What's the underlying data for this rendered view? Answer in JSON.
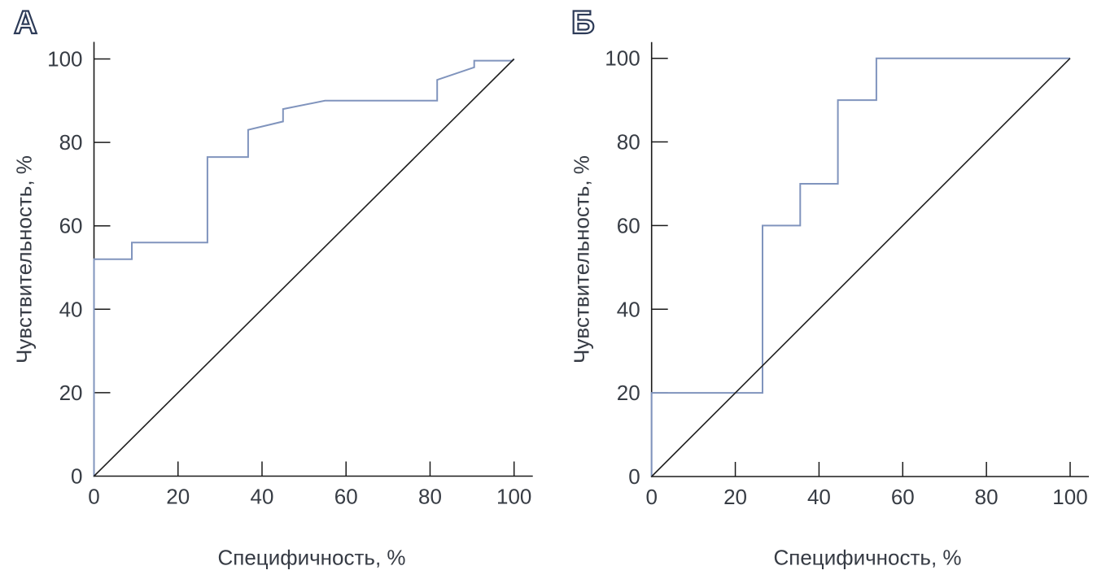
{
  "figure": {
    "background": "#ffffff",
    "axis_color": "#1a1a1a",
    "tick_label_color": "#373c44",
    "curve_color": "#8094bd",
    "diagonal_color": "#1f1f1f",
    "panel_letter_fill": "#ffffff",
    "panel_letter_stroke": "#2c3a57"
  },
  "panels": {
    "a_letter": "А",
    "b_letter": "Б"
  },
  "chart_data": [
    {
      "type": "line",
      "panel_label": "А",
      "title": "",
      "xlabel": "Специфичность, %",
      "ylabel": "Чувствительность, %",
      "xlim": [
        0,
        100
      ],
      "ylim": [
        0,
        100
      ],
      "xticks": [
        0,
        20,
        40,
        60,
        80,
        100
      ],
      "yticks": [
        0,
        20,
        40,
        60,
        80,
        100
      ],
      "grid": false,
      "legend": "none",
      "series": [
        {
          "name": "ROC curve",
          "role": "roc",
          "color": "#8094bd",
          "points": [
            [
              0,
              0
            ],
            [
              0,
              52
            ],
            [
              9,
              52
            ],
            [
              9,
              56
            ],
            [
              27,
              56
            ],
            [
              27,
              76.5
            ],
            [
              36.7,
              76.5
            ],
            [
              36.7,
              83
            ],
            [
              45,
              85
            ],
            [
              45,
              88
            ],
            [
              55,
              90
            ],
            [
              81.7,
              90
            ],
            [
              81.7,
              95
            ],
            [
              90.5,
              98
            ],
            [
              90.5,
              99.6
            ],
            [
              99.6,
              99.6
            ],
            [
              100,
              100
            ]
          ]
        },
        {
          "name": "Reference diagonal",
          "role": "diagonal",
          "color": "#1f1f1f",
          "points": [
            [
              0,
              0
            ],
            [
              100,
              100
            ]
          ]
        }
      ]
    },
    {
      "type": "line",
      "panel_label": "Б",
      "title": "",
      "xlabel": "Специфичность, %",
      "ylabel": "Чувствительность, %",
      "xlim": [
        0,
        100
      ],
      "ylim": [
        0,
        100
      ],
      "xticks": [
        0,
        20,
        40,
        60,
        80,
        100
      ],
      "yticks": [
        0,
        20,
        40,
        60,
        80,
        100
      ],
      "grid": false,
      "legend": "none",
      "series": [
        {
          "name": "ROC curve",
          "role": "roc",
          "color": "#8094bd",
          "points": [
            [
              0,
              0
            ],
            [
              0,
              20
            ],
            [
              26.5,
              20
            ],
            [
              26.5,
              60
            ],
            [
              35.5,
              60
            ],
            [
              35.5,
              70
            ],
            [
              44.5,
              70
            ],
            [
              44.5,
              90
            ],
            [
              53.7,
              90
            ],
            [
              53.7,
              100
            ],
            [
              100,
              100
            ]
          ]
        },
        {
          "name": "Reference diagonal",
          "role": "diagonal",
          "color": "#1f1f1f",
          "points": [
            [
              0,
              0
            ],
            [
              100,
              100
            ]
          ]
        }
      ]
    }
  ]
}
